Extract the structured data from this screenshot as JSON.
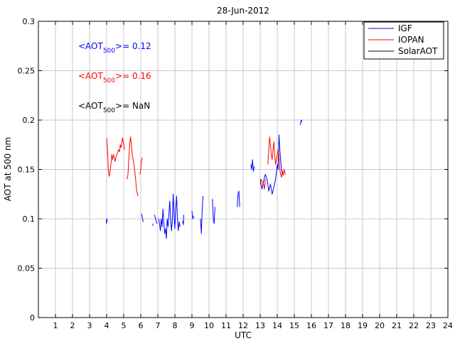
{
  "chart_data": {
    "type": "line",
    "title": "28-Jun-2012",
    "xlabel": "UTC",
    "ylabel": "AOT at 500 nm",
    "xlim": [
      0,
      24
    ],
    "ylim": [
      0,
      0.3
    ],
    "xticks": [
      1,
      2,
      3,
      4,
      5,
      6,
      7,
      8,
      9,
      10,
      11,
      12,
      13,
      14,
      15,
      16,
      17,
      18,
      19,
      20,
      21,
      22,
      23,
      24
    ],
    "yticks": [
      0,
      0.05,
      0.1,
      0.15,
      0.2,
      0.25,
      0.3
    ],
    "ytick_labels": [
      "0",
      "0.05",
      "0.1",
      "0.15",
      "0.2",
      "0.25",
      "0.3"
    ],
    "grid": true,
    "legend_position": "top-right",
    "annotations": [
      {
        "text_pre": "<AOT",
        "sub": "500",
        "text_post": ">= 0.12",
        "color": "#0000ff"
      },
      {
        "text_pre": "<AOT",
        "sub": "500",
        "text_post": ">= 0.16",
        "color": "#ff0000"
      },
      {
        "text_pre": "<AOT",
        "sub": "500",
        "text_post": ">=  NaN",
        "color": "#000000"
      }
    ],
    "series": [
      {
        "name": "IGF",
        "color": "#0000ff",
        "segments": [
          [
            [
              3.98,
              0.095
            ],
            [
              4.0,
              0.1
            ],
            [
              4.02,
              0.097
            ],
            [
              4.04,
              0.099
            ]
          ],
          [
            [
              6.05,
              0.105
            ],
            [
              6.1,
              0.1
            ],
            [
              6.15,
              0.097
            ]
          ],
          [
            [
              6.7,
              0.093
            ],
            [
              6.72,
              0.095
            ]
          ],
          [
            [
              6.8,
              0.104
            ],
            [
              6.9,
              0.098
            ],
            [
              6.95,
              0.095
            ]
          ],
          [
            [
              7.05,
              0.1
            ],
            [
              7.1,
              0.095
            ],
            [
              7.15,
              0.088
            ],
            [
              7.2,
              0.1
            ],
            [
              7.25,
              0.092
            ],
            [
              7.3,
              0.11
            ],
            [
              7.35,
              0.096
            ],
            [
              7.4,
              0.085
            ],
            [
              7.45,
              0.09
            ],
            [
              7.5,
              0.08
            ],
            [
              7.55,
              0.1
            ],
            [
              7.6,
              0.092
            ],
            [
              7.65,
              0.105
            ],
            [
              7.7,
              0.118
            ],
            [
              7.75,
              0.1
            ],
            [
              7.8,
              0.088
            ],
            [
              7.85,
              0.098
            ],
            [
              7.9,
              0.125
            ],
            [
              7.95,
              0.105
            ],
            [
              8.0,
              0.09
            ],
            [
              8.05,
              0.11
            ],
            [
              8.1,
              0.123
            ],
            [
              8.15,
              0.1
            ],
            [
              8.2,
              0.088
            ],
            [
              8.25,
              0.097
            ],
            [
              8.3,
              0.092
            ]
          ],
          [
            [
              8.45,
              0.098
            ],
            [
              8.5,
              0.094
            ],
            [
              8.52,
              0.104
            ]
          ],
          [
            [
              9.0,
              0.108
            ],
            [
              9.05,
              0.1
            ],
            [
              9.1,
              0.103
            ]
          ],
          [
            [
              9.5,
              0.1
            ],
            [
              9.55,
              0.085
            ],
            [
              9.6,
              0.11
            ],
            [
              9.65,
              0.123
            ]
          ],
          [
            [
              10.2,
              0.12
            ],
            [
              10.25,
              0.1
            ],
            [
              10.3,
              0.095
            ],
            [
              10.35,
              0.112
            ]
          ],
          [
            [
              11.65,
              0.112
            ],
            [
              11.7,
              0.125
            ],
            [
              11.75,
              0.128
            ],
            [
              11.8,
              0.112
            ]
          ],
          [
            [
              12.45,
              0.155
            ],
            [
              12.5,
              0.15
            ],
            [
              12.55,
              0.16
            ],
            [
              12.6,
              0.148
            ],
            [
              12.65,
              0.153
            ]
          ],
          [
            [
              13.0,
              0.14
            ],
            [
              13.1,
              0.13
            ],
            [
              13.2,
              0.138
            ],
            [
              13.3,
              0.145
            ],
            [
              13.4,
              0.14
            ],
            [
              13.5,
              0.128
            ],
            [
              13.6,
              0.135
            ],
            [
              13.7,
              0.125
            ],
            [
              13.8,
              0.132
            ],
            [
              13.9,
              0.14
            ],
            [
              14.0,
              0.155
            ],
            [
              14.05,
              0.15
            ],
            [
              14.1,
              0.185
            ],
            [
              14.15,
              0.17
            ],
            [
              14.2,
              0.16
            ],
            [
              14.25,
              0.15
            ],
            [
              14.3,
              0.145
            ]
          ],
          [
            [
              15.35,
              0.195
            ],
            [
              15.4,
              0.2
            ],
            [
              15.45,
              0.198
            ]
          ]
        ]
      },
      {
        "name": "IOPAN",
        "color": "#ff0000",
        "segments": [
          [
            [
              4.0,
              0.182
            ],
            [
              4.05,
              0.17
            ],
            [
              4.1,
              0.15
            ],
            [
              4.15,
              0.143
            ],
            [
              4.2,
              0.148
            ],
            [
              4.25,
              0.155
            ],
            [
              4.3,
              0.165
            ],
            [
              4.35,
              0.16
            ],
            [
              4.4,
              0.165
            ],
            [
              4.45,
              0.162
            ],
            [
              4.5,
              0.158
            ],
            [
              4.55,
              0.163
            ],
            [
              4.6,
              0.165
            ],
            [
              4.7,
              0.17
            ],
            [
              4.75,
              0.168
            ],
            [
              4.8,
              0.175
            ],
            [
              4.85,
              0.172
            ],
            [
              4.9,
              0.178
            ],
            [
              4.93,
              0.182
            ],
            [
              4.95,
              0.18
            ],
            [
              5.0,
              0.175
            ],
            [
              5.05,
              0.17
            ]
          ],
          [
            [
              5.2,
              0.14
            ],
            [
              5.25,
              0.145
            ],
            [
              5.3,
              0.16
            ],
            [
              5.35,
              0.175
            ],
            [
              5.4,
              0.183
            ],
            [
              5.45,
              0.175
            ],
            [
              5.5,
              0.165
            ],
            [
              5.55,
              0.16
            ],
            [
              5.6,
              0.155
            ],
            [
              5.65,
              0.148
            ],
            [
              5.7,
              0.14
            ],
            [
              5.75,
              0.13
            ],
            [
              5.8,
              0.125
            ],
            [
              5.85,
              0.123
            ]
          ],
          [
            [
              5.95,
              0.145
            ],
            [
              6.0,
              0.15
            ],
            [
              6.05,
              0.16
            ],
            [
              6.1,
              0.162
            ]
          ],
          [
            [
              13.0,
              0.135
            ],
            [
              13.05,
              0.14
            ],
            [
              13.1,
              0.138
            ],
            [
              13.2,
              0.135
            ],
            [
              13.25,
              0.13
            ],
            [
              13.3,
              0.14
            ]
          ],
          [
            [
              13.45,
              0.155
            ],
            [
              13.5,
              0.17
            ],
            [
              13.55,
              0.183
            ],
            [
              13.6,
              0.175
            ],
            [
              13.65,
              0.165
            ],
            [
              13.7,
              0.16
            ],
            [
              13.75,
              0.17
            ],
            [
              13.8,
              0.178
            ],
            [
              13.85,
              0.165
            ],
            [
              13.9,
              0.155
            ],
            [
              13.95,
              0.16
            ],
            [
              14.0,
              0.165
            ],
            [
              14.05,
              0.17
            ],
            [
              14.1,
              0.165
            ],
            [
              14.15,
              0.15
            ],
            [
              14.2,
              0.145
            ],
            [
              14.25,
              0.142
            ],
            [
              14.3,
              0.148
            ],
            [
              14.35,
              0.144
            ],
            [
              14.4,
              0.15
            ],
            [
              14.45,
              0.146
            ],
            [
              14.5,
              0.145
            ]
          ]
        ]
      },
      {
        "name": "SolarAOT",
        "color": "#000000",
        "segments": []
      }
    ]
  }
}
